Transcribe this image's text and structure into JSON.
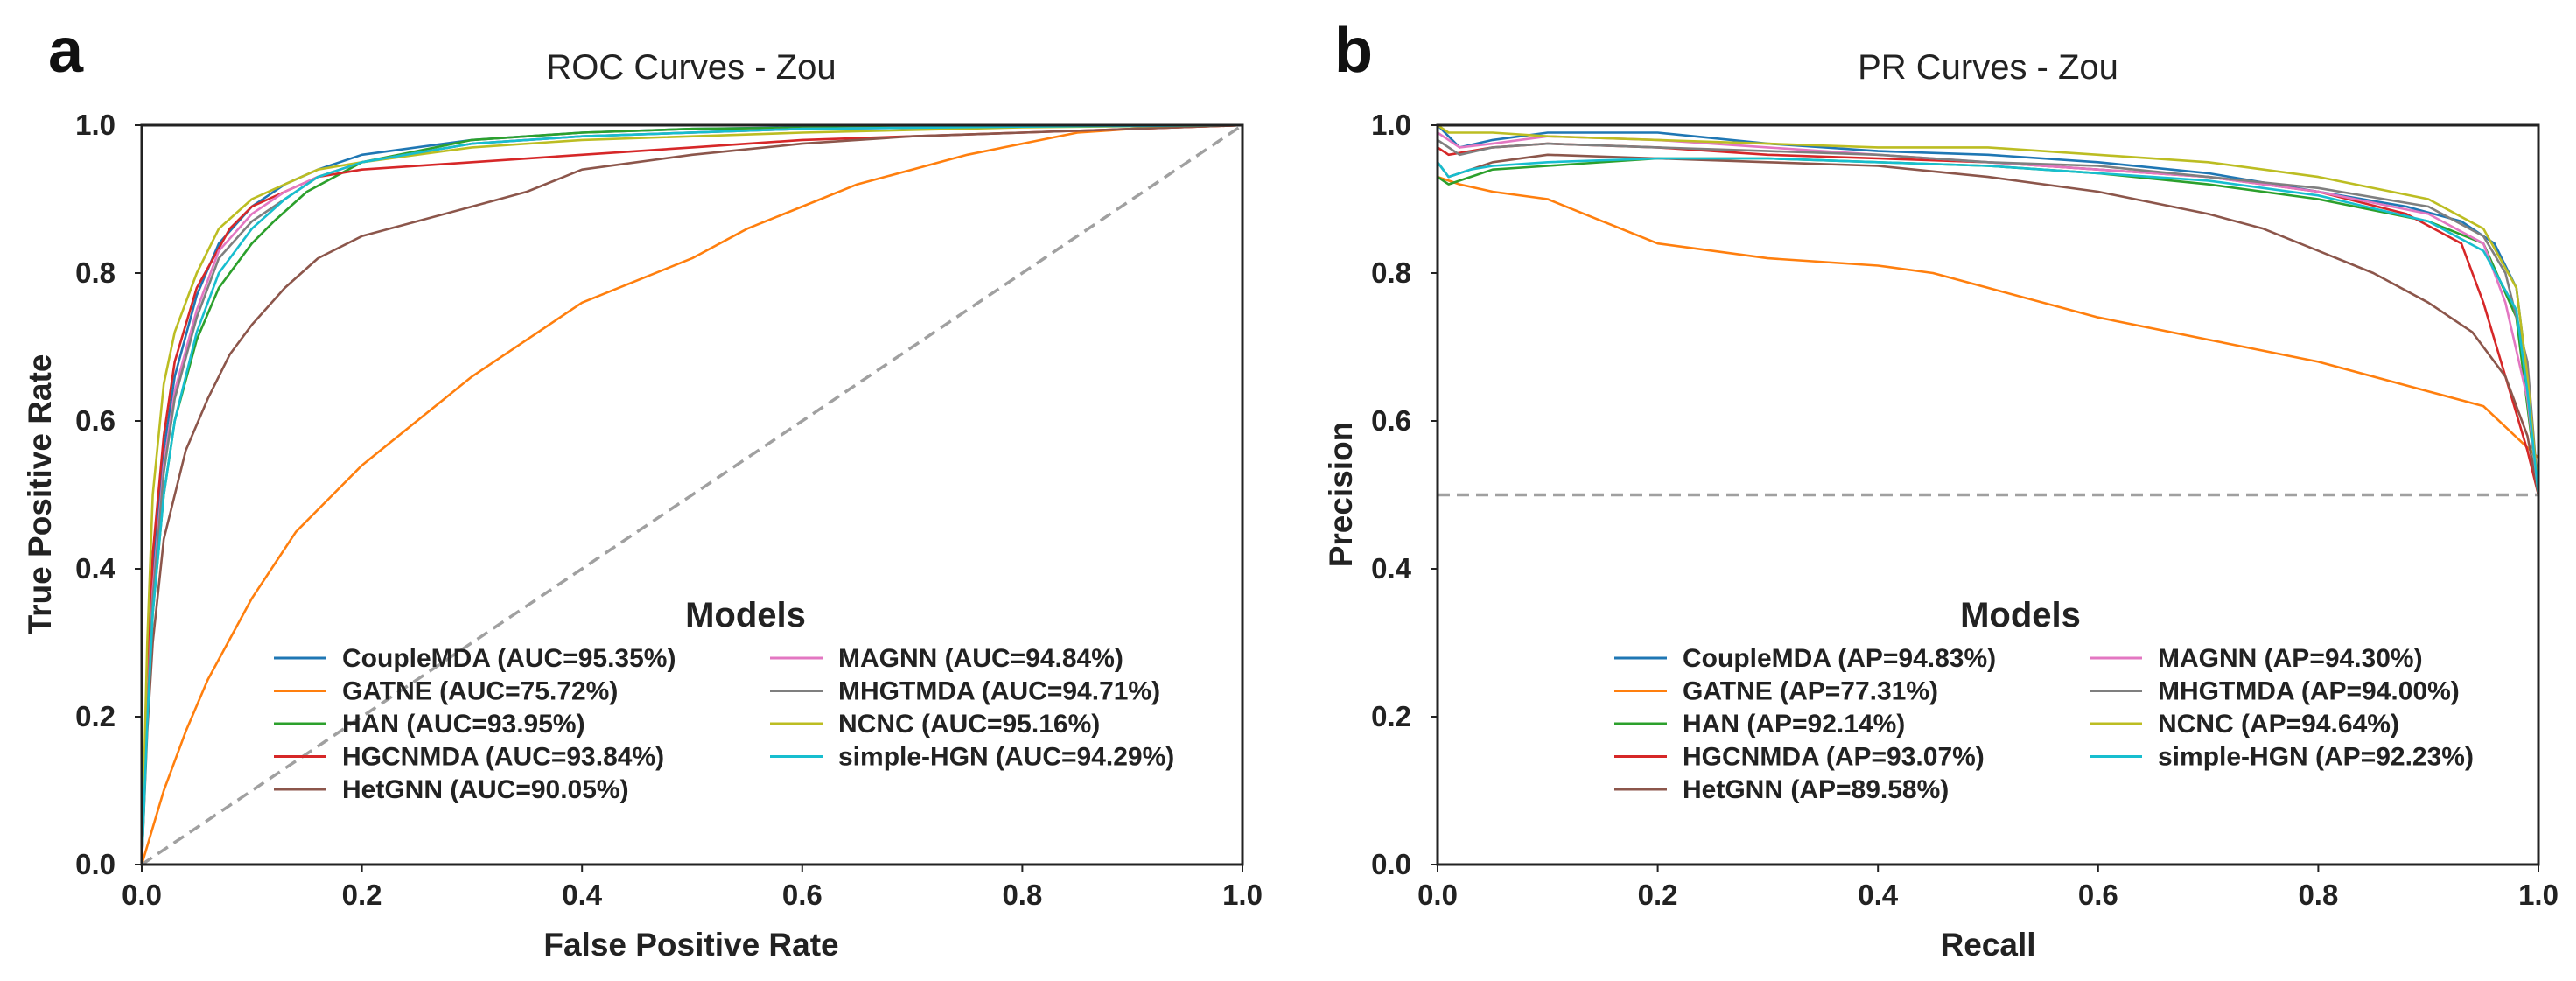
{
  "colors": {
    "CoupleMDA": "#1f77b4",
    "GATNE": "#ff7f0e",
    "HAN": "#2ca02c",
    "HGCNMDA": "#d62728",
    "HetGNN": "#8c564b",
    "MAGNN": "#e377c2",
    "MHGTMDA": "#7f7f7f",
    "NCNC": "#bcbd22",
    "simple-HGN": "#17becf",
    "reference": "#a0a0a0"
  },
  "chart_data": [
    {
      "panel": "a",
      "type": "line",
      "title": "ROC Curves - Zou",
      "xlabel": "False Positive Rate",
      "ylabel": "True Positive Rate",
      "xlim": [
        0.0,
        1.0
      ],
      "ylim": [
        0.0,
        1.0
      ],
      "xticks": [
        "0.0",
        "0.2",
        "0.4",
        "0.6",
        "0.8",
        "1.0"
      ],
      "yticks": [
        "0.0",
        "0.2",
        "0.4",
        "0.6",
        "0.8",
        "1.0"
      ],
      "grid": false,
      "legend_title": "Models",
      "legend_position": "lower-right",
      "reference_line": {
        "x": [
          0,
          1
        ],
        "y": [
          0,
          1
        ],
        "style": "dashed"
      },
      "series": [
        {
          "name": "CoupleMDA",
          "label": "CoupleMDA (AUC=95.35%)",
          "x": [
            0,
            0.005,
            0.01,
            0.02,
            0.03,
            0.05,
            0.07,
            0.1,
            0.13,
            0.16,
            0.2,
            0.3,
            0.4,
            0.5,
            0.6,
            0.8,
            1.0
          ],
          "y": [
            0,
            0.22,
            0.4,
            0.56,
            0.66,
            0.77,
            0.84,
            0.89,
            0.92,
            0.94,
            0.96,
            0.98,
            0.99,
            0.995,
            0.997,
            0.999,
            1.0
          ]
        },
        {
          "name": "GATNE",
          "label": "GATNE (AUC=75.72%)",
          "x": [
            0,
            0.01,
            0.02,
            0.04,
            0.06,
            0.1,
            0.14,
            0.2,
            0.25,
            0.3,
            0.35,
            0.4,
            0.45,
            0.5,
            0.55,
            0.6,
            0.65,
            0.7,
            0.75,
            0.8,
            0.85,
            0.9,
            1.0
          ],
          "y": [
            0,
            0.05,
            0.1,
            0.18,
            0.25,
            0.36,
            0.45,
            0.54,
            0.6,
            0.66,
            0.71,
            0.76,
            0.79,
            0.82,
            0.86,
            0.89,
            0.92,
            0.94,
            0.96,
            0.975,
            0.99,
            0.995,
            1.0
          ]
        },
        {
          "name": "HAN",
          "label": "HAN (AUC=93.95%)",
          "x": [
            0,
            0.005,
            0.01,
            0.02,
            0.03,
            0.05,
            0.07,
            0.1,
            0.12,
            0.15,
            0.2,
            0.3,
            0.4,
            0.5,
            0.7,
            1.0
          ],
          "y": [
            0,
            0.2,
            0.34,
            0.5,
            0.6,
            0.71,
            0.78,
            0.84,
            0.87,
            0.91,
            0.95,
            0.98,
            0.99,
            0.995,
            0.998,
            1.0
          ]
        },
        {
          "name": "HGCNMDA",
          "label": "HGCNMDA (AUC=93.84%)",
          "x": [
            0,
            0.005,
            0.01,
            0.02,
            0.03,
            0.05,
            0.08,
            0.1,
            0.13,
            0.16,
            0.2,
            0.3,
            0.4,
            0.5,
            0.6,
            0.7,
            0.8,
            0.9,
            1.0
          ],
          "y": [
            0,
            0.24,
            0.42,
            0.58,
            0.68,
            0.78,
            0.86,
            0.89,
            0.91,
            0.93,
            0.94,
            0.95,
            0.96,
            0.97,
            0.98,
            0.985,
            0.99,
            0.995,
            1.0
          ]
        },
        {
          "name": "HetGNN",
          "label": "HetGNN (AUC=90.05%)",
          "x": [
            0,
            0.005,
            0.01,
            0.02,
            0.04,
            0.06,
            0.08,
            0.1,
            0.13,
            0.16,
            0.2,
            0.25,
            0.3,
            0.35,
            0.4,
            0.5,
            0.6,
            0.7,
            0.8,
            0.9,
            1.0
          ],
          "y": [
            0,
            0.18,
            0.3,
            0.44,
            0.56,
            0.63,
            0.69,
            0.73,
            0.78,
            0.82,
            0.85,
            0.87,
            0.89,
            0.91,
            0.94,
            0.96,
            0.975,
            0.985,
            0.99,
            0.995,
            1.0
          ]
        },
        {
          "name": "MAGNN",
          "label": "MAGNN (AUC=94.84%)",
          "x": [
            0,
            0.005,
            0.01,
            0.02,
            0.03,
            0.05,
            0.07,
            0.1,
            0.13,
            0.16,
            0.2,
            0.3,
            0.4,
            0.6,
            0.8,
            1.0
          ],
          "y": [
            0,
            0.21,
            0.37,
            0.54,
            0.64,
            0.75,
            0.83,
            0.88,
            0.91,
            0.93,
            0.95,
            0.975,
            0.985,
            0.995,
            0.998,
            1.0
          ]
        },
        {
          "name": "MHGTMDA",
          "label": "MHGTMDA (AUC=94.71%)",
          "x": [
            0,
            0.005,
            0.01,
            0.02,
            0.03,
            0.05,
            0.07,
            0.1,
            0.13,
            0.16,
            0.2,
            0.3,
            0.4,
            0.6,
            0.8,
            1.0
          ],
          "y": [
            0,
            0.2,
            0.36,
            0.53,
            0.63,
            0.74,
            0.82,
            0.87,
            0.9,
            0.93,
            0.95,
            0.975,
            0.985,
            0.995,
            0.998,
            1.0
          ]
        },
        {
          "name": "NCNC",
          "label": "NCNC (AUC=95.16%)",
          "x": [
            0,
            0.005,
            0.01,
            0.02,
            0.03,
            0.05,
            0.07,
            0.1,
            0.13,
            0.16,
            0.2,
            0.3,
            0.4,
            0.6,
            0.8,
            1.0
          ],
          "y": [
            0,
            0.3,
            0.5,
            0.65,
            0.72,
            0.8,
            0.86,
            0.9,
            0.92,
            0.94,
            0.95,
            0.97,
            0.98,
            0.99,
            0.997,
            1.0
          ]
        },
        {
          "name": "simple-HGN",
          "label": "simple-HGN (AUC=94.29%)",
          "x": [
            0,
            0.005,
            0.01,
            0.02,
            0.03,
            0.05,
            0.07,
            0.1,
            0.13,
            0.16,
            0.2,
            0.3,
            0.4,
            0.6,
            0.8,
            1.0
          ],
          "y": [
            0,
            0.19,
            0.34,
            0.5,
            0.6,
            0.72,
            0.8,
            0.86,
            0.9,
            0.93,
            0.95,
            0.975,
            0.985,
            0.995,
            0.998,
            1.0
          ]
        }
      ]
    },
    {
      "panel": "b",
      "type": "line",
      "title": "PR Curves - Zou",
      "xlabel": "Recall",
      "ylabel": "Precision",
      "xlim": [
        0.0,
        1.0
      ],
      "ylim": [
        0.0,
        1.0
      ],
      "xticks": [
        "0.0",
        "0.2",
        "0.4",
        "0.6",
        "0.8",
        "1.0"
      ],
      "yticks": [
        "0.0",
        "0.2",
        "0.4",
        "0.6",
        "0.8",
        "1.0"
      ],
      "grid": false,
      "legend_title": "Models",
      "legend_position": "lower-right",
      "reference_line": {
        "x": [
          0,
          1
        ],
        "y": [
          0.5,
          0.5
        ],
        "style": "dashed"
      },
      "series": [
        {
          "name": "CoupleMDA",
          "label": "CoupleMDA (AP=94.83%)",
          "x": [
            0,
            0.02,
            0.05,
            0.1,
            0.2,
            0.3,
            0.4,
            0.5,
            0.6,
            0.7,
            0.8,
            0.88,
            0.93,
            0.96,
            0.98,
            0.99,
            1.0
          ],
          "y": [
            1.0,
            0.97,
            0.98,
            0.99,
            0.99,
            0.975,
            0.965,
            0.96,
            0.95,
            0.935,
            0.91,
            0.89,
            0.87,
            0.84,
            0.78,
            0.66,
            0.5
          ]
        },
        {
          "name": "GATNE",
          "label": "GATNE (AP=77.31%)",
          "x": [
            0,
            0.02,
            0.05,
            0.1,
            0.15,
            0.2,
            0.3,
            0.4,
            0.45,
            0.5,
            0.6,
            0.7,
            0.8,
            0.9,
            0.95,
            1.0
          ],
          "y": [
            0.93,
            0.92,
            0.91,
            0.9,
            0.87,
            0.84,
            0.82,
            0.81,
            0.8,
            0.78,
            0.74,
            0.71,
            0.68,
            0.64,
            0.62,
            0.55
          ]
        },
        {
          "name": "HAN",
          "label": "HAN (AP=92.14%)",
          "x": [
            0,
            0.01,
            0.03,
            0.05,
            0.1,
            0.2,
            0.3,
            0.4,
            0.5,
            0.6,
            0.7,
            0.8,
            0.9,
            0.95,
            0.98,
            1.0
          ],
          "y": [
            0.93,
            0.92,
            0.93,
            0.94,
            0.945,
            0.955,
            0.955,
            0.95,
            0.945,
            0.935,
            0.92,
            0.9,
            0.87,
            0.84,
            0.74,
            0.5
          ]
        },
        {
          "name": "HGCNMDA",
          "label": "HGCNMDA (AP=93.07%)",
          "x": [
            0,
            0.01,
            0.05,
            0.1,
            0.2,
            0.3,
            0.4,
            0.5,
            0.6,
            0.7,
            0.8,
            0.88,
            0.93,
            0.95,
            0.97,
            0.99,
            1.0
          ],
          "y": [
            0.97,
            0.96,
            0.97,
            0.975,
            0.97,
            0.96,
            0.955,
            0.95,
            0.94,
            0.93,
            0.91,
            0.88,
            0.84,
            0.76,
            0.66,
            0.56,
            0.5
          ]
        },
        {
          "name": "HetGNN",
          "label": "HetGNN (AP=89.58%)",
          "x": [
            0,
            0.01,
            0.05,
            0.1,
            0.2,
            0.3,
            0.4,
            0.5,
            0.6,
            0.7,
            0.75,
            0.8,
            0.85,
            0.9,
            0.94,
            0.97,
            0.99,
            1.0
          ],
          "y": [
            0.95,
            0.93,
            0.95,
            0.96,
            0.955,
            0.95,
            0.945,
            0.93,
            0.91,
            0.88,
            0.86,
            0.83,
            0.8,
            0.76,
            0.72,
            0.66,
            0.58,
            0.5
          ]
        },
        {
          "name": "MAGNN",
          "label": "MAGNN (AP=94.30%)",
          "x": [
            0,
            0.02,
            0.05,
            0.1,
            0.2,
            0.3,
            0.4,
            0.5,
            0.6,
            0.7,
            0.8,
            0.9,
            0.95,
            0.97,
            0.99,
            1.0
          ],
          "y": [
            0.99,
            0.97,
            0.975,
            0.985,
            0.98,
            0.97,
            0.96,
            0.95,
            0.94,
            0.93,
            0.91,
            0.88,
            0.84,
            0.76,
            0.63,
            0.5
          ]
        },
        {
          "name": "MHGTMDA",
          "label": "MHGTMDA (AP=94.00%)",
          "x": [
            0,
            0.02,
            0.05,
            0.1,
            0.2,
            0.3,
            0.4,
            0.5,
            0.6,
            0.7,
            0.8,
            0.9,
            0.95,
            0.97,
            0.99,
            1.0
          ],
          "y": [
            0.98,
            0.96,
            0.97,
            0.975,
            0.97,
            0.965,
            0.96,
            0.95,
            0.945,
            0.93,
            0.915,
            0.89,
            0.85,
            0.8,
            0.68,
            0.5
          ]
        },
        {
          "name": "NCNC",
          "label": "NCNC (AP=94.64%)",
          "x": [
            0,
            0.01,
            0.05,
            0.1,
            0.2,
            0.3,
            0.4,
            0.5,
            0.6,
            0.7,
            0.8,
            0.9,
            0.95,
            0.98,
            0.99,
            1.0
          ],
          "y": [
            1.0,
            0.99,
            0.99,
            0.985,
            0.98,
            0.975,
            0.97,
            0.97,
            0.96,
            0.95,
            0.93,
            0.9,
            0.86,
            0.78,
            0.66,
            0.5
          ]
        },
        {
          "name": "simple-HGN",
          "label": "simple-HGN (AP=92.23%)",
          "x": [
            0,
            0.01,
            0.03,
            0.05,
            0.1,
            0.2,
            0.3,
            0.4,
            0.5,
            0.6,
            0.7,
            0.8,
            0.9,
            0.95,
            0.98,
            0.99,
            1.0
          ],
          "y": [
            0.95,
            0.93,
            0.94,
            0.945,
            0.95,
            0.955,
            0.955,
            0.95,
            0.945,
            0.935,
            0.925,
            0.905,
            0.87,
            0.83,
            0.75,
            0.64,
            0.5
          ]
        }
      ]
    }
  ]
}
